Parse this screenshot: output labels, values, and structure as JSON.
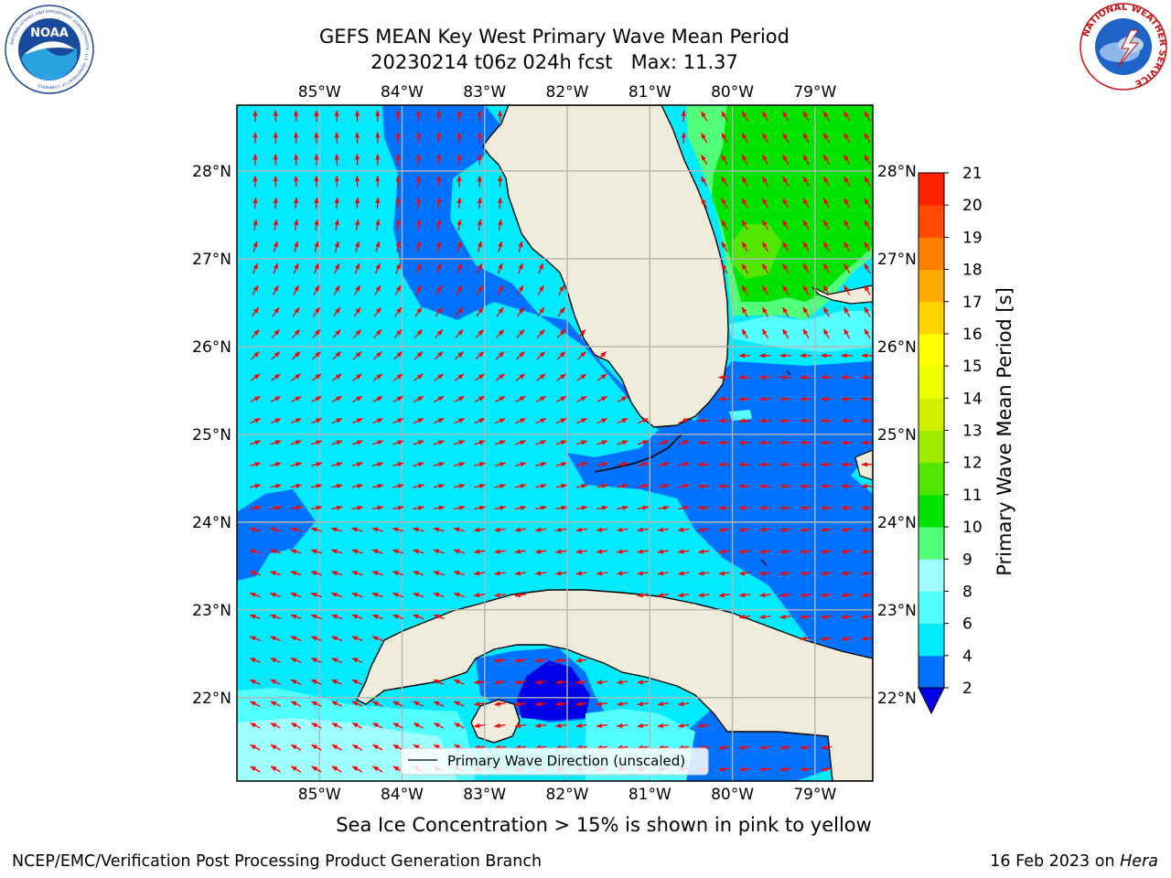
{
  "title": {
    "line1": "GEFS MEAN Key West Primary Wave Mean Period",
    "line2": "20230214 t06z 024h fcst   Max: 11.37"
  },
  "map": {
    "lon_labels": [
      "85°W",
      "84°W",
      "83°W",
      "82°W",
      "81°W",
      "80°W",
      "79°W"
    ],
    "lat_labels": [
      "28°N",
      "27°N",
      "26°N",
      "25°N",
      "24°N",
      "23°N",
      "22°N"
    ],
    "lon_range": [
      -86.0,
      -78.3
    ],
    "lat_range": [
      21.05,
      28.75
    ],
    "land_color": "#efecdc",
    "arrow_color": "#ff0000",
    "legend_label": "Primary Wave Direction (unscaled)"
  },
  "colorbar": {
    "label": "Primary Wave Mean Period [s]",
    "tick_labels": [
      "2",
      "4",
      "6",
      "8",
      "9",
      "10",
      "11",
      "12",
      "13",
      "14",
      "15",
      "16",
      "17",
      "18",
      "19",
      "20",
      "21"
    ],
    "colors": [
      "#0072ff",
      "#00ebff",
      "#53ffff",
      "#9fffff",
      "#52ff7c",
      "#00e400",
      "#52e700",
      "#a0ea00",
      "#d0f000",
      "#f0ff00",
      "#ffff00",
      "#ffd400",
      "#ffaa00",
      "#ff7f00",
      "#ff4a00",
      "#ff2000"
    ],
    "under_color": "#0000e6"
  },
  "caption": "Sea Ice Concentration > 15% is shown in pink to yellow",
  "footer": {
    "left": "NCEP/EMC/Verification Post Processing Product Generation Branch",
    "right_prefix": "16 Feb 2023 on",
    "right_host": "Hera"
  },
  "logos": {
    "left_text": "NOAA",
    "left_ring": "NATIONAL OCEANIC AND ATMOSPHERIC ADMINISTRATION · U.S. DEPARTMENT OF COMMERCE",
    "right_ring": "NATIONAL WEATHER SERVICE"
  }
}
